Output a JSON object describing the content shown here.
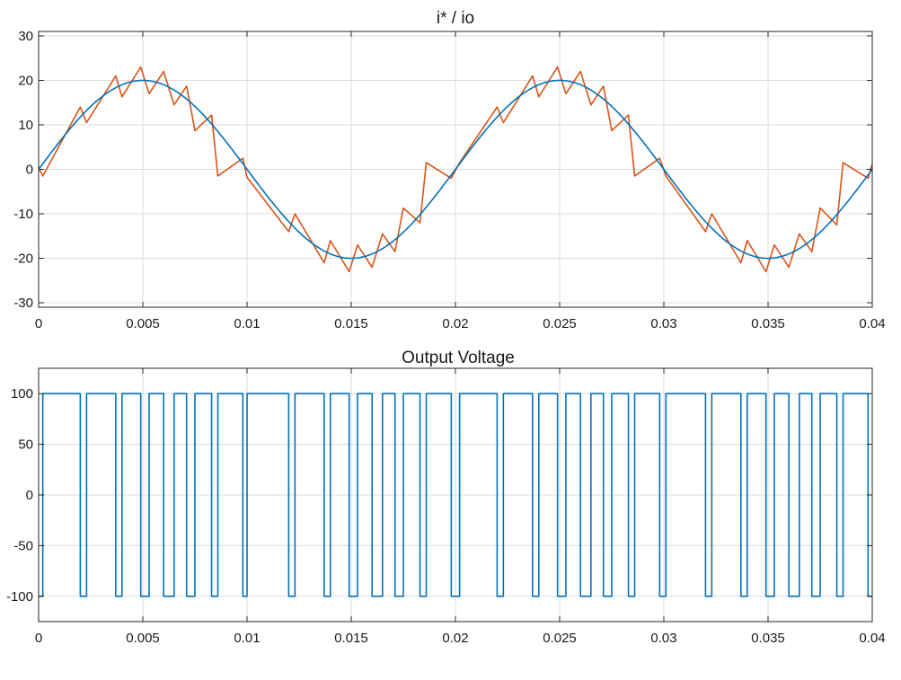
{
  "chart_data": [
    {
      "type": "line",
      "title": "i* / io",
      "xlabel": "",
      "ylabel": "",
      "xlim": [
        0,
        0.04
      ],
      "ylim": [
        -31,
        31
      ],
      "xticks": [
        0,
        0.005,
        0.01,
        0.015,
        0.02,
        0.025,
        0.03,
        0.035,
        0.04
      ],
      "xtick_labels": [
        "0",
        "0.005",
        "0.01",
        "0.015",
        "0.02",
        "0.025",
        "0.03",
        "0.035",
        "0.04"
      ],
      "yticks": [
        30,
        20,
        10,
        0,
        -10,
        -20,
        -30
      ],
      "ytick_labels": [
        "30",
        "20",
        "10",
        "0",
        "-10",
        "-20",
        "-30"
      ],
      "grid": true,
      "series": [
        {
          "color": "#D95319",
          "x": [
            0,
            0.0002,
            0.002,
            0.0023,
            0.0037,
            0.004,
            0.0049,
            0.0053,
            0.006,
            0.0065,
            0.0071,
            0.0075,
            0.0083,
            0.0086,
            0.0098,
            0.01,
            0.012,
            0.0123,
            0.0137,
            0.014,
            0.0149,
            0.0153,
            0.016,
            0.0165,
            0.0171,
            0.0175,
            0.0183,
            0.0186,
            0.0198,
            0.0202,
            0.022,
            0.0223,
            0.0237,
            0.024,
            0.0249,
            0.0253,
            0.026,
            0.0265,
            0.0271,
            0.0275,
            0.0283,
            0.0286,
            0.0298,
            0.0301,
            0.032,
            0.0323,
            0.0337,
            0.034,
            0.0349,
            0.0353,
            0.036,
            0.0365,
            0.0371,
            0.0375,
            0.0383,
            0.0386,
            0.0398,
            0.04
          ],
          "y": [
            0.5,
            -1.5,
            14,
            10.5,
            21,
            16.3,
            23,
            17,
            22,
            14.5,
            18.7,
            8.7,
            12.2,
            -1.5,
            2.5,
            -1.8,
            -14,
            -10,
            -21,
            -16,
            -23,
            -17,
            -22,
            -14.5,
            -18.5,
            -8.7,
            -12,
            1.5,
            -2,
            1.5,
            14,
            10.5,
            21,
            16.3,
            23,
            17,
            22,
            14.5,
            18.7,
            8.7,
            12.2,
            -1.5,
            2.5,
            -1.5,
            -14,
            -10,
            -21,
            -16,
            -23,
            -17,
            -22,
            -14.5,
            -18.5,
            -8.7,
            -12.5,
            1.5,
            -2,
            1.2
          ]
        },
        {
          "color": "#0072BD",
          "function": "20*sin(2*pi*50*t)",
          "amplitude": 20,
          "frequency_hz": 50
        }
      ]
    },
    {
      "type": "line",
      "title": "Output Voltage",
      "xlabel": "",
      "ylabel": "",
      "xlim": [
        0,
        0.04
      ],
      "ylim": [
        -125,
        125
      ],
      "xticks": [
        0,
        0.005,
        0.01,
        0.015,
        0.02,
        0.025,
        0.03,
        0.035,
        0.04
      ],
      "xtick_labels": [
        "0",
        "0.005",
        "0.01",
        "0.015",
        "0.02",
        "0.025",
        "0.03",
        "0.035",
        "0.04"
      ],
      "yticks": [
        100,
        50,
        0,
        -50,
        -100
      ],
      "ytick_labels": [
        "100",
        "50",
        "0",
        "-50",
        "-100"
      ],
      "grid": true,
      "series": [
        {
          "color": "#0072BD",
          "step": true,
          "initial": -100,
          "levels": [
            100,
            -100
          ],
          "switch_times": [
            0.0002,
            0.002,
            0.0023,
            0.0037,
            0.004,
            0.0049,
            0.0053,
            0.006,
            0.0065,
            0.0071,
            0.0075,
            0.0083,
            0.0086,
            0.0098,
            0.01,
            0.012,
            0.0123,
            0.0137,
            0.014,
            0.0149,
            0.0153,
            0.016,
            0.0165,
            0.0171,
            0.0175,
            0.0183,
            0.0186,
            0.0198,
            0.0202,
            0.022,
            0.0223,
            0.0237,
            0.024,
            0.0249,
            0.0253,
            0.026,
            0.0265,
            0.0271,
            0.0275,
            0.0283,
            0.0286,
            0.0298,
            0.0301,
            0.032,
            0.0323,
            0.0337,
            0.034,
            0.0349,
            0.0353,
            0.036,
            0.0365,
            0.0371,
            0.0375,
            0.0383,
            0.0386,
            0.0398
          ]
        }
      ]
    }
  ]
}
